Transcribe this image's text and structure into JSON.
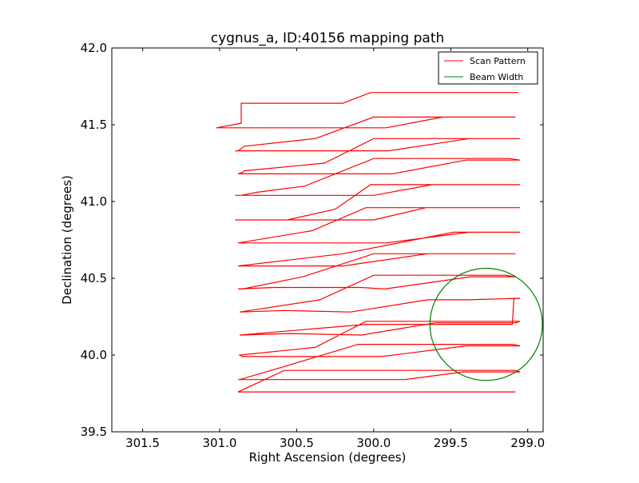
{
  "chart_data": {
    "type": "line",
    "title": "cygnus_a, ID:40156 mapping path",
    "xlabel": "Right Ascension (degrees)",
    "ylabel": "Declination (degrees)",
    "xlim": [
      301.7,
      298.9
    ],
    "ylim": [
      39.5,
      42.0
    ],
    "x_inverted": true,
    "xticks": [
      301.5,
      301.0,
      300.5,
      300.0,
      299.5,
      299.0
    ],
    "xtick_labels": [
      "301.5",
      "301.0",
      "300.5",
      "300.0",
      "299.5",
      "299.0"
    ],
    "yticks": [
      39.5,
      40.0,
      40.5,
      41.0,
      41.5,
      42.0
    ],
    "ytick_labels": [
      "39.5",
      "40.0",
      "40.5",
      "41.0",
      "41.5",
      "42.0"
    ],
    "grid": false,
    "legend_position": "top-right",
    "series": [
      {
        "name": "Scan Pattern",
        "color": "#ff0000",
        "x": [
          299.06,
          299.4,
          299.92,
          300.02,
          300.2,
          300.56,
          300.86,
          300.86,
          301.02,
          300.9,
          300.88,
          299.92,
          299.55,
          299.08,
          300.0,
          300.38,
          300.84,
          300.88,
          300.9,
          300.77,
          300.4,
          299.9,
          299.38,
          299.05,
          300.0,
          300.32,
          300.84,
          300.85,
          300.88,
          300.77,
          300.15,
          299.88,
          299.4,
          299.05,
          299.12,
          300.0,
          300.45,
          300.76,
          300.86,
          300.88,
          300.9,
          300.45,
          300.0,
          299.62,
          299.05,
          299.08,
          300.02,
          300.25,
          300.56,
          300.88,
          300.9,
          300.6,
          300.0,
          299.66,
          299.05,
          299.08,
          299.4,
          300.05,
          300.4,
          300.88,
          300.87,
          300.85,
          300.5,
          300.06,
          299.92,
          299.38,
          299.05,
          299.08,
          299.48,
          300.2,
          300.88,
          300.87,
          300.85,
          300.6,
          300.2,
          299.65,
          299.4,
          299.08,
          300.0,
          300.46,
          300.85,
          300.88,
          300.65,
          300.08,
          299.93,
          299.37,
          299.08,
          299.15,
          300.0,
          300.35,
          300.87,
          300.58,
          300.15,
          299.65,
          299.38,
          299.05,
          299.09,
          299.1,
          300.05,
          300.87,
          300.55,
          300.08,
          299.6,
          299.38,
          299.08,
          299.05,
          300.05,
          300.38,
          300.87,
          300.85,
          300.6,
          300.1,
          299.95,
          299.4,
          299.05,
          299.1,
          300.1,
          300.6,
          300.87,
          300.88,
          300.88,
          300.58,
          300.18,
          299.8,
          299.42,
          299.05,
          299.08,
          300.22,
          300.58,
          300.88,
          300.85,
          300.6,
          300.0,
          299.6,
          299.08
        ],
        "y": [
          41.71,
          41.71,
          41.71,
          41.71,
          41.64,
          41.64,
          41.64,
          41.51,
          41.48,
          41.48,
          41.48,
          41.48,
          41.55,
          41.55,
          41.55,
          41.41,
          41.36,
          41.33,
          41.33,
          41.33,
          41.33,
          41.33,
          41.41,
          41.41,
          41.41,
          41.25,
          41.2,
          41.19,
          41.18,
          41.18,
          41.18,
          41.18,
          41.27,
          41.27,
          41.28,
          41.28,
          41.1,
          41.06,
          41.04,
          41.04,
          41.04,
          41.04,
          41.04,
          41.11,
          41.11,
          41.11,
          41.11,
          40.95,
          40.88,
          40.88,
          40.88,
          40.88,
          40.88,
          40.96,
          40.96,
          40.96,
          40.96,
          40.96,
          40.81,
          40.73,
          40.73,
          40.73,
          40.73,
          40.73,
          40.73,
          40.8,
          40.8,
          40.8,
          40.8,
          40.66,
          40.58,
          40.58,
          40.58,
          40.58,
          40.58,
          40.66,
          40.66,
          40.66,
          40.66,
          40.51,
          40.43,
          40.43,
          40.44,
          40.44,
          40.43,
          40.51,
          40.51,
          40.52,
          40.52,
          40.36,
          40.28,
          40.29,
          40.28,
          40.36,
          40.36,
          40.37,
          40.37,
          40.2,
          40.2,
          40.13,
          40.14,
          40.13,
          40.21,
          40.21,
          40.21,
          40.22,
          40.22,
          40.05,
          40.0,
          39.99,
          39.99,
          39.99,
          39.99,
          40.06,
          40.06,
          40.07,
          40.07,
          39.92,
          39.84,
          39.84,
          39.84,
          39.84,
          39.84,
          39.84,
          39.89,
          39.89,
          39.9,
          39.9,
          39.9,
          39.76,
          39.76,
          39.76,
          39.76,
          39.76,
          39.76
        ]
      },
      {
        "name": "Beam Width",
        "color": "#008000",
        "shape": "circle",
        "center": [
          299.27,
          40.2
        ],
        "radius": 0.365
      }
    ]
  }
}
